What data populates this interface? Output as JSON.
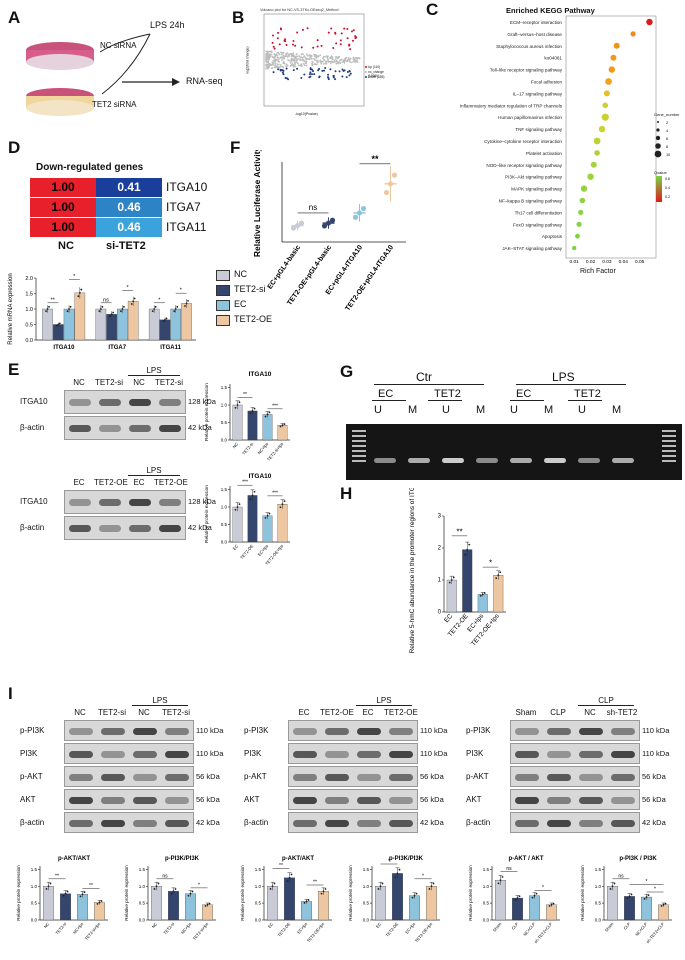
{
  "panels": [
    "A",
    "B",
    "C",
    "D",
    "E",
    "F",
    "G",
    "H",
    "I"
  ],
  "panelA": {
    "lps": "LPS  24h",
    "nc": "NC siRNA",
    "tet2": "TET2 siRNA",
    "rnaseq": "RNA-seq"
  },
  "panelB": {
    "title": "Volcano plot for NC-VS-3TKc.DEseq2_Method",
    "legend": [
      "Up (110)",
      "no_change (19960)",
      "Down (155)"
    ],
    "xlabel": "-log10(Pvalue)",
    "ylabel": "log2(fold change)"
  },
  "panelC": {
    "title": "Enriched KEGG Pathway",
    "xlabel": "Rich Factor",
    "xticks": [
      "0.01",
      "0.02",
      "0.03",
      "0.04",
      "0.05"
    ],
    "gene_number_label": "Gene_number",
    "gene_number_ticks": [
      "2",
      "4",
      "6",
      "8",
      "10"
    ],
    "qvalue_label": "Qvalue",
    "qvalue_ticks": [
      "0.6",
      "0.4",
      "0.2"
    ],
    "pathways": [
      "ECM–receptor interaction",
      "Graft–versus–host disease",
      "Staphylococcus aureus infection",
      "ko04061",
      "Toll–like receptor signaling pathway",
      "Focal adhesion",
      "IL–17 signaling pathway",
      "Inflammatory mediator regulation of TRP channels",
      "Human papillomavirus infection",
      "TNF signaling pathway",
      "Cytokine–cytokine receptor interaction",
      "Platelet activation",
      "NOD–like receptor signaling pathway",
      "PI3K–Akt signaling pathway",
      "MAPK signaling pathway",
      "NF–kappa B signaling pathway",
      "Th17 cell differentiation",
      "FoxO signaling pathway",
      "Apoptosis",
      "JAK–STAT signaling pathway"
    ]
  },
  "panelD": {
    "heat_title": "Down-regulated genes",
    "rows": [
      {
        "nc": "1.00",
        "si": "0.41",
        "gene": "ITGA10"
      },
      {
        "nc": "1.00",
        "si": "0.46",
        "gene": "ITGA7"
      },
      {
        "nc": "1.00",
        "si": "0.46",
        "gene": "ITGA11"
      }
    ],
    "col_nc": "NC",
    "col_si": "si-TET2",
    "ylabel": "Relative mRNA expression",
    "legend": [
      "NC",
      "TET2-si",
      "EC",
      "TET2-OE"
    ],
    "groups": [
      "ITGA10",
      "ITGA7",
      "ITGA11"
    ],
    "yticks": [
      "0.0",
      "0.5",
      "1.0",
      "1.5",
      "2.0"
    ],
    "sig": [
      "**",
      "*",
      "ns",
      "*",
      "*",
      "*"
    ],
    "chart_data": {
      "type": "bar",
      "categories": [
        "ITGA10",
        "ITGA7",
        "ITGA11"
      ],
      "series": [
        {
          "name": "NC",
          "values": [
            1.0,
            1.0,
            1.0
          ]
        },
        {
          "name": "TET2-si",
          "values": [
            0.5,
            0.83,
            0.65
          ]
        },
        {
          "name": "EC",
          "values": [
            1.0,
            1.0,
            1.0
          ]
        },
        {
          "name": "TET2-OE",
          "values": [
            1.52,
            1.25,
            1.18
          ]
        }
      ],
      "ylim": [
        0,
        2
      ]
    }
  },
  "panelE": {
    "blot1": {
      "lps": "LPS",
      "cols": [
        "NC",
        "TET2-si",
        "NC",
        "TET2-si"
      ],
      "rows": [
        "ITGA10",
        "β-actin"
      ],
      "kda": [
        "128 kDa",
        "42 kDa"
      ]
    },
    "blot2": {
      "lps": "LPS",
      "cols": [
        "EC",
        "TET2-OE",
        "EC",
        "TET2-OE"
      ],
      "rows": [
        "ITGA10",
        "β-actin"
      ],
      "kda": [
        "128 kDa",
        "42 kDa"
      ]
    },
    "chart1": {
      "title": "ITGA10",
      "ylabel": "Relative protein expression",
      "cats": [
        "NC",
        "TET2-si",
        "NC+lps",
        "TET2-si+lps"
      ],
      "values": [
        1.0,
        0.83,
        0.73,
        0.42
      ],
      "sig": [
        "**",
        "***"
      ],
      "yticks": [
        "0.0",
        "0.5",
        "1.0",
        "1.5"
      ]
    },
    "chart2": {
      "title": "ITGA10",
      "ylabel": "Relative protein expression",
      "cats": [
        "EC",
        "TET2-OE",
        "EC+lps",
        "TET2-OE+lps"
      ],
      "values": [
        1.0,
        1.33,
        0.75,
        1.08
      ],
      "sig": [
        "***",
        "***"
      ],
      "yticks": [
        "0.0",
        "0.5",
        "1.0",
        "1.5"
      ]
    }
  },
  "panelF": {
    "ylabel": "Relative Luciferase Activity",
    "cats": [
      "EC+pGL4-basic",
      "TET2-OE+pGL4-basic",
      "EC+pGL4-ITGA10",
      "TET2-OE+pGL4-ITGA10"
    ],
    "values": [
      0.45,
      0.52,
      0.8,
      1.6
    ],
    "colors": [
      "#c9ccd6",
      "#34456e",
      "#8dc3dc",
      "#ecc7a1"
    ],
    "sig": [
      "ns",
      "**"
    ]
  },
  "panelG": {
    "groups": [
      "Ctr",
      "LPS"
    ],
    "sub": [
      "EC",
      "TET2",
      "EC",
      "TET2"
    ],
    "um": [
      "U",
      "M",
      "U",
      "M",
      "U",
      "M",
      "U",
      "M"
    ]
  },
  "panelH": {
    "ylabel": "Relative 5-hmC abundance in the promoter regions of ITGA10",
    "cats": [
      "EC",
      "TET2-OE",
      "EC+lps",
      "TET2-OE+lps"
    ],
    "values": [
      1.0,
      1.95,
      0.55,
      1.15
    ],
    "sig": [
      "**",
      "*"
    ],
    "yticks": [
      "0",
      "1",
      "2",
      "3"
    ]
  },
  "panelI": {
    "blots": [
      {
        "lps": "LPS",
        "cols": [
          "NC",
          "TET2-si",
          "NC",
          "TET2-si"
        ],
        "rows": [
          "p-PI3K",
          "PI3K",
          "p-AKT",
          "AKT",
          "β-actin"
        ],
        "kda": [
          "110 kDa",
          "110 kDa",
          "56 kDa",
          "56 kDa",
          "42 kDa"
        ]
      },
      {
        "lps": "LPS",
        "cols": [
          "EC",
          "TET2-OE",
          "EC",
          "TET2-OE"
        ],
        "rows": [
          "p-PI3K",
          "PI3K",
          "p-AKT",
          "AKT",
          "β-actin"
        ],
        "kda": [
          "110 kDa",
          "110 kDa",
          "56 kDa",
          "56 kDa",
          "42 kDa"
        ]
      },
      {
        "lps": "CLP",
        "cols": [
          "Sham",
          "CLP",
          "NC",
          "sh-TET2"
        ],
        "rows": [
          "p-PI3K",
          "PI3K",
          "p-AKT",
          "AKT",
          "β-actin"
        ],
        "kda": [
          "110 kDa",
          "110 kDa",
          "56 kDa",
          "56 kDa",
          "42 kDa"
        ]
      }
    ],
    "charts": [
      {
        "title": "p-AKT/AKT",
        "cats": [
          "NC",
          "TET2-si",
          "NC+lps",
          "TET2-si+lps"
        ],
        "values": [
          1.0,
          0.78,
          0.76,
          0.52
        ],
        "sig": [
          "**",
          "**"
        ],
        "colors": [
          "#c9ccd6",
          "#34456e",
          "#8dc3dc",
          "#ecc7a1"
        ]
      },
      {
        "title": "p-PI3K/PI3K",
        "cats": [
          "NC",
          "TET2-si",
          "NC+lps",
          "TET2-si+lps"
        ],
        "values": [
          1.0,
          0.85,
          0.78,
          0.45
        ],
        "sig": [
          "ns",
          "*"
        ],
        "colors": [
          "#c9ccd6",
          "#34456e",
          "#8dc3dc",
          "#ecc7a1"
        ]
      },
      {
        "title": "p-AKT/AKT",
        "cats": [
          "EC",
          "TET2-OE",
          "EC+lps",
          "TET2-OE+lps"
        ],
        "values": [
          1.0,
          1.25,
          0.55,
          0.85
        ],
        "sig": [
          "**",
          "**"
        ],
        "colors": [
          "#c9ccd6",
          "#34456e",
          "#8dc3dc",
          "#ecc7a1"
        ]
      },
      {
        "title": "p-PI3K/PI3K",
        "cats": [
          "EC",
          "TET2-OE",
          "EC+lps",
          "TET2-OE+lps"
        ],
        "values": [
          1.0,
          1.38,
          0.72,
          1.0
        ],
        "sig": [
          "*",
          "*"
        ],
        "colors": [
          "#c9ccd6",
          "#34456e",
          "#8dc3dc",
          "#ecc7a1"
        ]
      },
      {
        "title": "p-AKT / AKT",
        "cats": [
          "Sham",
          "CLP",
          "NC+CLP",
          "sh-TET2+CLP"
        ],
        "values": [
          1.18,
          0.65,
          0.72,
          0.45
        ],
        "sig": [
          "ns",
          "*"
        ],
        "colors": [
          "#c9ccd6",
          "#34456e",
          "#8dc3dc",
          "#ecc7a1"
        ]
      },
      {
        "title": "p-PI3K / PI3K",
        "cats": [
          "Sham",
          "CLP",
          "NC+CLP",
          "sh-TET2+CLP"
        ],
        "values": [
          1.0,
          0.7,
          0.68,
          0.45
        ],
        "sig": [
          "ns",
          "*",
          "*"
        ],
        "colors": [
          "#c9ccd6",
          "#34456e",
          "#8dc3dc",
          "#ecc7a1"
        ]
      }
    ],
    "ylabel": "Relative protein expression",
    "yticks": [
      "0.0",
      "0.5",
      "1.0",
      "1.5"
    ]
  }
}
